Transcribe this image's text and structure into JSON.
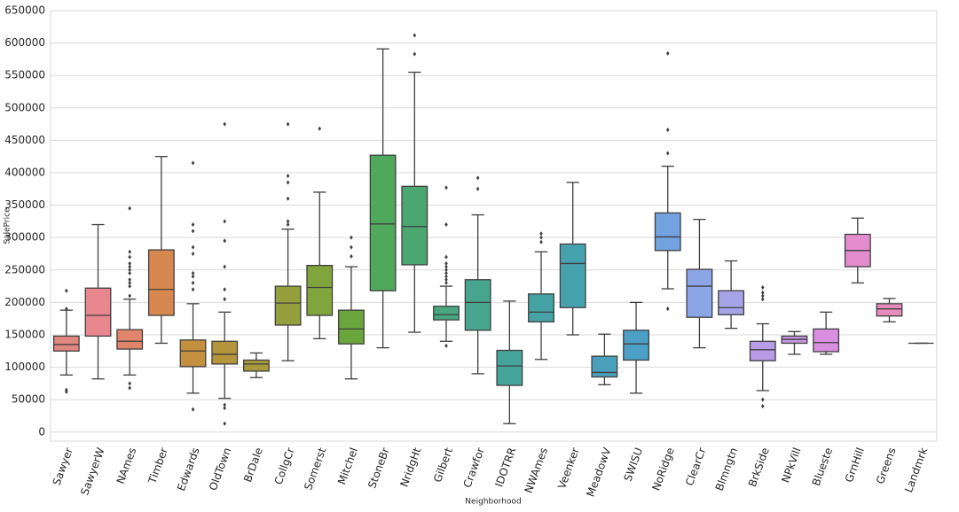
{
  "chart_data": {
    "type": "box",
    "x_label": "Neighborhood",
    "y_label": "SalePrice",
    "categories": [
      "Sawyer",
      "SawyerW",
      "NAmes",
      "Timber",
      "Edwards",
      "OldTown",
      "BrDale",
      "CollgCr",
      "Somerst",
      "Mitchel",
      "StoneBr",
      "NridgHt",
      "Gilbert",
      "Crawfor",
      "IDOTRR",
      "NWAmes",
      "Veenker",
      "MeadowV",
      "SWISU",
      "NoRidge",
      "ClearCr",
      "Blmngtn",
      "BrkSide",
      "NPkVill",
      "Blueste",
      "GrnHill",
      "Greens",
      "Landmrk"
    ],
    "colors": [
      "#e1877d",
      "#e8878d",
      "#e0856a",
      "#d6884e",
      "#c48f3e",
      "#b5953b",
      "#a69a3c",
      "#93a03c",
      "#80a53d",
      "#6aa63c",
      "#4fa85c",
      "#4ca66f",
      "#49a77f",
      "#48a58d",
      "#46a59a",
      "#45a3a6",
      "#47a2b0",
      "#4aa0bb",
      "#4c9fc5",
      "#72a2e0",
      "#8ca5e6",
      "#a6a4e8",
      "#b99ce6",
      "#c897e5",
      "#d98fe0",
      "#e38dce",
      "#e68cbd",
      "#e88aa8"
    ],
    "boxes": [
      {
        "whislo": 88000,
        "q1": 125000,
        "med": 135000,
        "q3": 148000,
        "whishi": 188000,
        "fliers": [
          218000,
          190000,
          65000,
          62000
        ]
      },
      {
        "whislo": 82000,
        "q1": 148000,
        "med": 180000,
        "q3": 222000,
        "whishi": 320000,
        "fliers": []
      },
      {
        "whislo": 88000,
        "q1": 128000,
        "med": 140000,
        "q3": 158000,
        "whishi": 205000,
        "fliers": [
          345000,
          278000,
          270000,
          260000,
          255000,
          250000,
          245000,
          235000,
          230000,
          225000,
          210000,
          75000,
          68000
        ]
      },
      {
        "whislo": 137000,
        "q1": 180000,
        "med": 220000,
        "q3": 281000,
        "whishi": 425000,
        "fliers": []
      },
      {
        "whislo": 60000,
        "q1": 101000,
        "med": 125000,
        "q3": 142000,
        "whishi": 198000,
        "fliers": [
          415000,
          320000,
          310000,
          285000,
          275000,
          245000,
          240000,
          230000,
          220000,
          35000
        ]
      },
      {
        "whislo": 52000,
        "q1": 105000,
        "med": 120000,
        "q3": 140000,
        "whishi": 185000,
        "fliers": [
          475000,
          325000,
          295000,
          255000,
          220000,
          205000,
          42000,
          37000,
          13000
        ]
      },
      {
        "whislo": 84000,
        "q1": 94000,
        "med": 105000,
        "q3": 111000,
        "whishi": 122000,
        "fliers": []
      },
      {
        "whislo": 110000,
        "q1": 165000,
        "med": 199000,
        "q3": 225000,
        "whishi": 313000,
        "fliers": [
          475000,
          395000,
          385000,
          360000,
          325000,
          320000
        ]
      },
      {
        "whislo": 144000,
        "q1": 180000,
        "med": 223000,
        "q3": 257000,
        "whishi": 370000,
        "fliers": [
          468000
        ]
      },
      {
        "whislo": 82000,
        "q1": 136000,
        "med": 159000,
        "q3": 188000,
        "whishi": 255000,
        "fliers": [
          300000,
          285000,
          271000
        ]
      },
      {
        "whislo": 130000,
        "q1": 218000,
        "med": 321000,
        "q3": 427000,
        "whishi": 591000,
        "fliers": []
      },
      {
        "whislo": 154000,
        "q1": 258000,
        "med": 317000,
        "q3": 379000,
        "whishi": 555000,
        "fliers": [
          612000,
          583000
        ]
      },
      {
        "whislo": 140000,
        "q1": 173000,
        "med": 181000,
        "q3": 194000,
        "whishi": 225000,
        "fliers": [
          377000,
          320000,
          270000,
          260000,
          255000,
          250000,
          245000,
          240000,
          235000,
          230000,
          133000
        ]
      },
      {
        "whislo": 90000,
        "q1": 157000,
        "med": 200000,
        "q3": 235000,
        "whishi": 335000,
        "fliers": [
          392000,
          375000
        ]
      },
      {
        "whislo": 13000,
        "q1": 72000,
        "med": 102000,
        "q3": 126000,
        "whishi": 202000,
        "fliers": []
      },
      {
        "whislo": 112000,
        "q1": 170000,
        "med": 185000,
        "q3": 213000,
        "whishi": 278000,
        "fliers": [
          306000,
          300000,
          293000
        ]
      },
      {
        "whislo": 150000,
        "q1": 192000,
        "med": 260000,
        "q3": 290000,
        "whishi": 385000,
        "fliers": []
      },
      {
        "whislo": 73000,
        "q1": 85000,
        "med": 92000,
        "q3": 117000,
        "whishi": 151000,
        "fliers": []
      },
      {
        "whislo": 60000,
        "q1": 111000,
        "med": 136000,
        "q3": 157000,
        "whishi": 200000,
        "fliers": []
      },
      {
        "whislo": 221000,
        "q1": 280000,
        "med": 301000,
        "q3": 338000,
        "whishi": 410000,
        "fliers": [
          584000,
          466000,
          430000,
          190000
        ]
      },
      {
        "whislo": 130000,
        "q1": 177000,
        "med": 225000,
        "q3": 251000,
        "whishi": 328000,
        "fliers": []
      },
      {
        "whislo": 160000,
        "q1": 181000,
        "med": 192000,
        "q3": 218000,
        "whishi": 264000,
        "fliers": []
      },
      {
        "whislo": 64000,
        "q1": 110000,
        "med": 127000,
        "q3": 140000,
        "whishi": 167000,
        "fliers": [
          223000,
          215000,
          210000,
          205000,
          50000,
          40000
        ]
      },
      {
        "whislo": 120000,
        "q1": 137000,
        "med": 143000,
        "q3": 148000,
        "whishi": 155000,
        "fliers": []
      },
      {
        "whislo": 120000,
        "q1": 124000,
        "med": 138000,
        "q3": 159000,
        "whishi": 185000,
        "fliers": []
      },
      {
        "whislo": 230000,
        "q1": 255000,
        "med": 280000,
        "q3": 305000,
        "whishi": 330000,
        "fliers": []
      },
      {
        "whislo": 170000,
        "q1": 179000,
        "med": 190000,
        "q3": 198000,
        "whishi": 206000,
        "fliers": []
      },
      {
        "whislo": 137000,
        "q1": 137000,
        "med": 137000,
        "q3": 137000,
        "whishi": 137000,
        "fliers": []
      }
    ],
    "ylim": [
      -14000,
      650000
    ],
    "yticks": [
      0,
      50000,
      100000,
      150000,
      200000,
      250000,
      300000,
      350000,
      400000,
      450000,
      500000,
      550000,
      600000,
      650000
    ],
    "grid": true
  }
}
